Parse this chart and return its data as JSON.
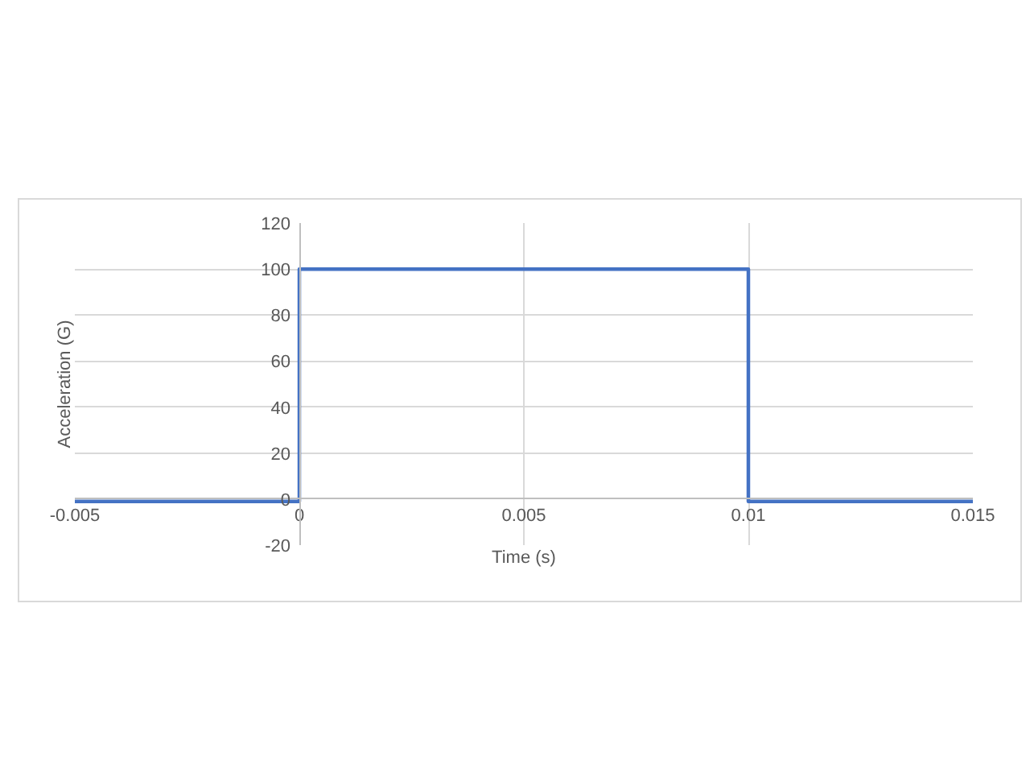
{
  "chart_data": {
    "type": "line",
    "xlabel": "Time (s)",
    "ylabel": "Acceleration (G)",
    "series": [
      {
        "color": "#4472c4",
        "x": [
          -0.005,
          0,
          0,
          0.01,
          0.01,
          0.015
        ],
        "values": [
          -1,
          -1,
          100,
          100,
          -1,
          -1
        ]
      }
    ],
    "xlim": [
      -0.005,
      0.015
    ],
    "xticks": [
      -0.005,
      0,
      0.005,
      0.01,
      0.015
    ],
    "ylim": [
      -20,
      120
    ],
    "yticks": [
      -20,
      0,
      20,
      40,
      60,
      80,
      100,
      120
    ],
    "grid": true,
    "marker": "none",
    "line_style": "solid"
  }
}
